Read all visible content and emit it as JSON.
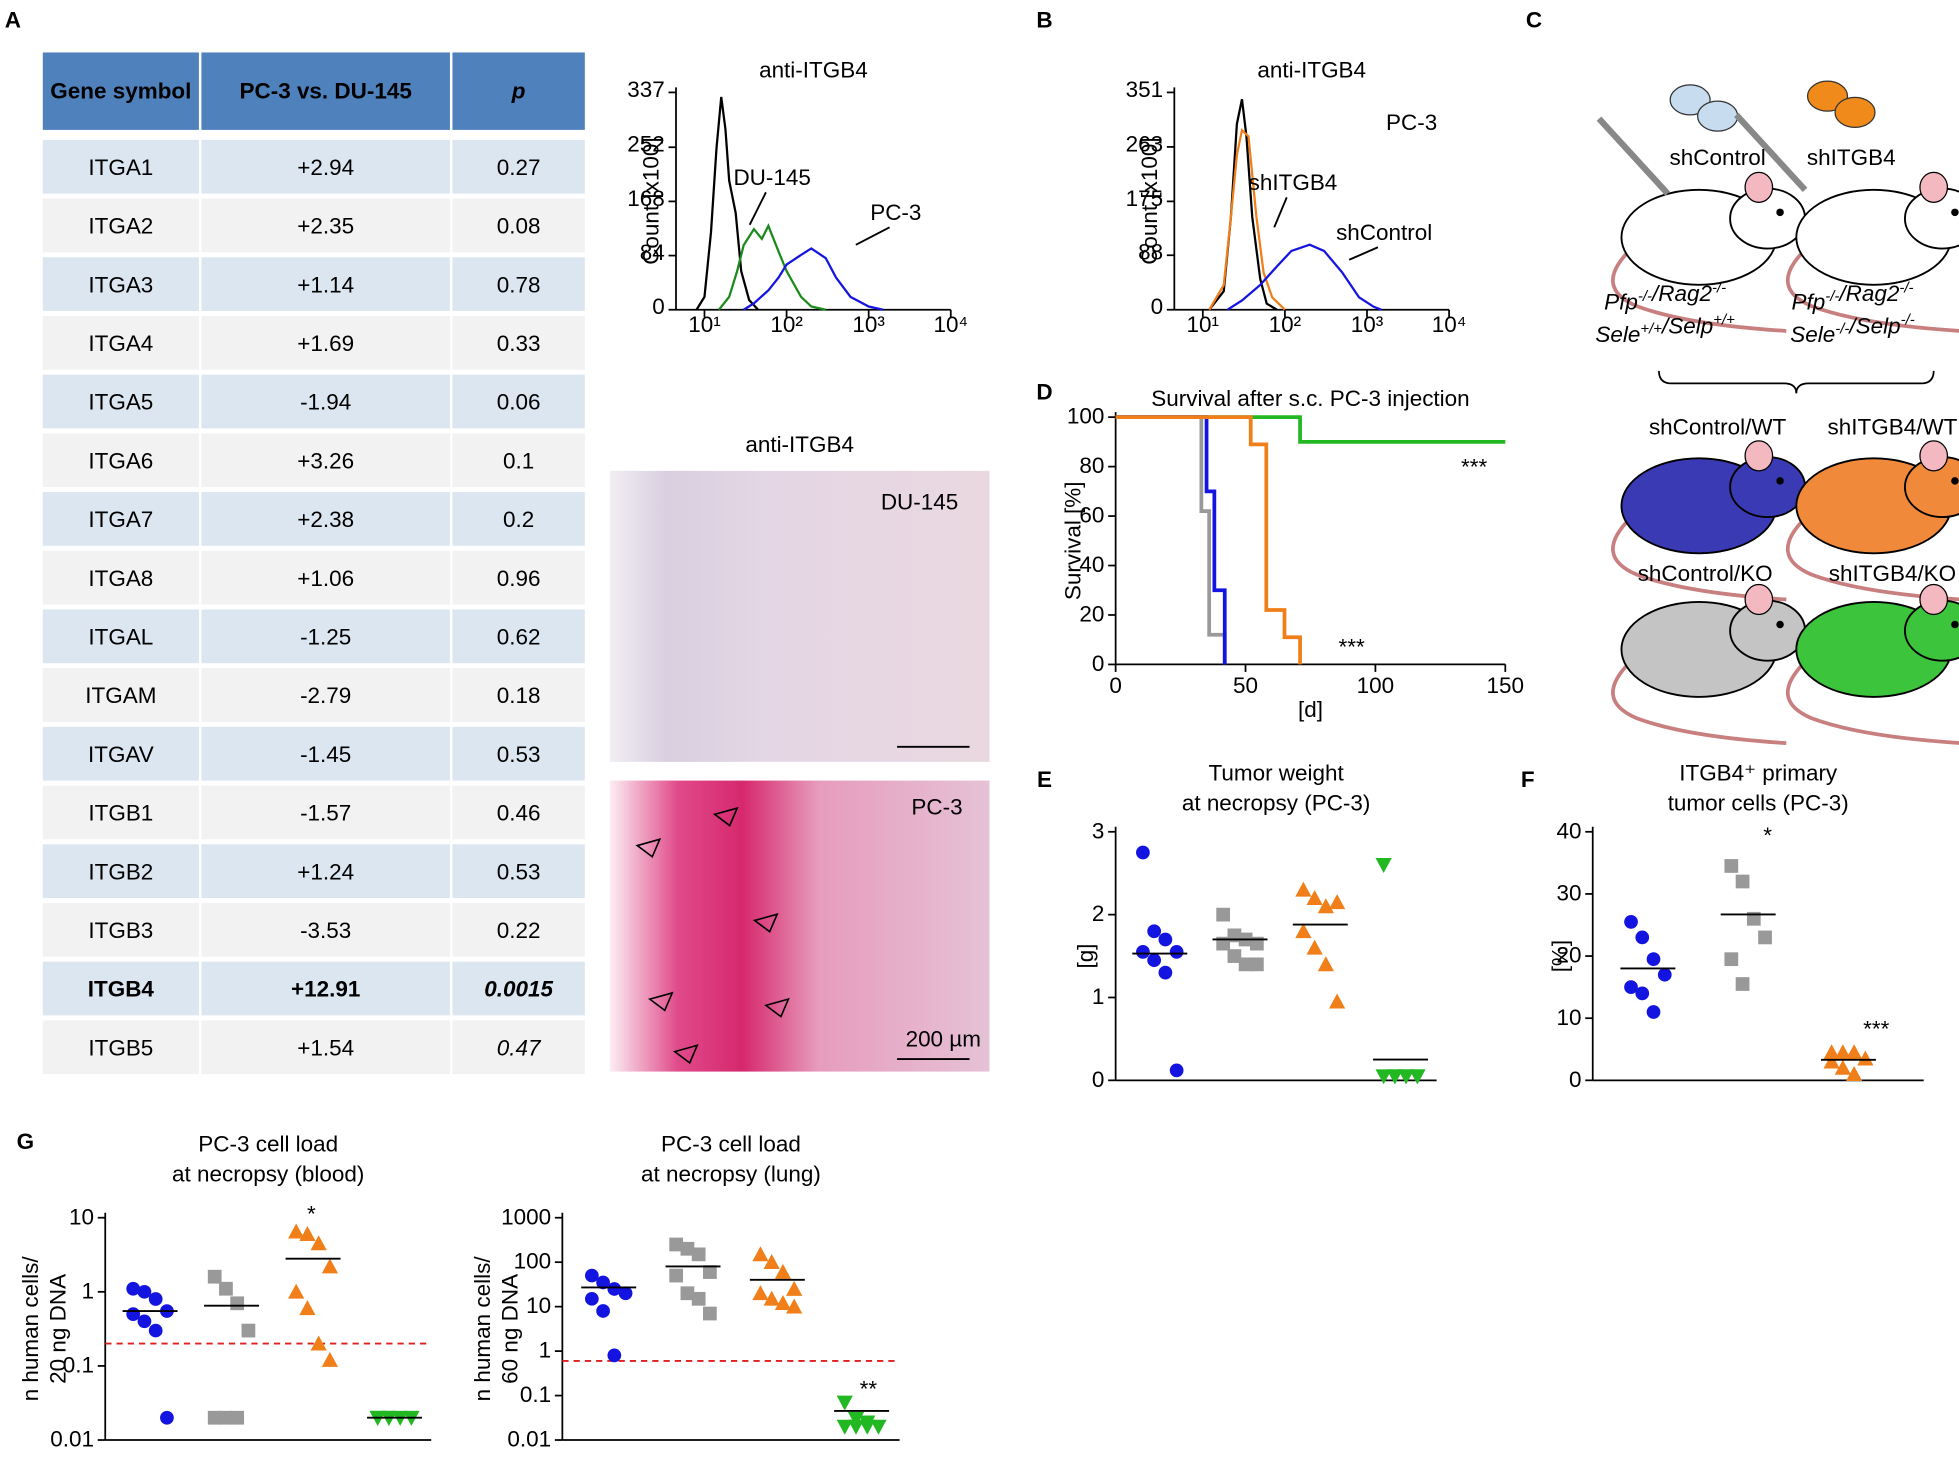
{
  "panel_labels": [
    "A",
    "B",
    "C",
    "D",
    "E",
    "F",
    "G"
  ],
  "table": {
    "header": [
      "Gene symbol",
      "PC-3 vs. DU-145",
      "p"
    ],
    "highlight_row": 14,
    "rows": [
      [
        "ITGA1",
        "+2.94",
        "0.27"
      ],
      [
        "ITGA2",
        "+2.35",
        "0.08"
      ],
      [
        "ITGA3",
        "+1.14",
        "0.78"
      ],
      [
        "ITGA4",
        "+1.69",
        "0.33"
      ],
      [
        "ITGA5",
        "-1.94",
        "0.06"
      ],
      [
        "ITGA6",
        "+3.26",
        "0.1"
      ],
      [
        "ITGA7",
        "+2.38",
        "0.2"
      ],
      [
        "ITGA8",
        "+1.06",
        "0.96"
      ],
      [
        "ITGAL",
        "-1.25",
        "0.62"
      ],
      [
        "ITGAM",
        "-2.79",
        "0.18"
      ],
      [
        "ITGAV",
        "-1.45",
        "0.53"
      ],
      [
        "ITGB1",
        "-1.57",
        "0.46"
      ],
      [
        "ITGB2",
        "+1.24",
        "0.53"
      ],
      [
        "ITGB3",
        "-3.53",
        "0.22"
      ],
      [
        "ITGB4",
        "+12.91",
        "0.0015"
      ],
      [
        "ITGB5",
        "+1.54",
        "0.47"
      ]
    ]
  },
  "ihc": {
    "title": "anti-ITGB4",
    "labels": [
      "DU-145",
      "PC-3"
    ],
    "scale_bar": "200 µm"
  },
  "diagram": {
    "injections": [
      "shControl",
      "shITGB4"
    ],
    "genotypes": [
      [
        [
          [
            "Pfp",
            "-/-"
          ],
          [
            "/Rag2",
            "-/-"
          ]
        ],
        [
          [
            "Sele",
            "+/+"
          ],
          [
            "/Selp",
            "+/+"
          ]
        ]
      ],
      [
        [
          [
            "Pfp",
            "-/-"
          ],
          [
            "/Rag2",
            "-/-"
          ]
        ],
        [
          [
            "Sele",
            "-/-"
          ],
          [
            "/Selp",
            "-/-"
          ]
        ]
      ]
    ],
    "groups": [
      "shControl/WT",
      "shITGB4/WT",
      "shControl/KO",
      "shITGB4/KO"
    ]
  },
  "chart_data": [
    {
      "type": "line",
      "title": "anti-ITGB4",
      "ylabel": "Count [x100]",
      "xscale": "log",
      "xlim": [
        4.5,
        10000
      ],
      "ylim": [
        0,
        337
      ],
      "yticks": [
        0,
        84,
        168,
        252,
        337
      ],
      "xticks": [
        {
          "value": 10,
          "label": "10¹"
        },
        {
          "value": 100,
          "label": "10²"
        },
        {
          "value": 1000,
          "label": "10³"
        },
        {
          "value": 10000,
          "label": "10⁴"
        }
      ],
      "series": [
        {
          "color": "#000000",
          "x": [
            8,
            10,
            12,
            14,
            16,
            18,
            20,
            24,
            28,
            35,
            45
          ],
          "values": [
            0,
            20,
            120,
            250,
            330,
            280,
            200,
            150,
            60,
            15,
            0
          ]
        },
        {
          "name": "DU-145",
          "color": "#1a8a1a",
          "x": [
            15,
            20,
            25,
            30,
            40,
            50,
            60,
            80,
            100,
            150,
            200,
            300
          ],
          "values": [
            0,
            20,
            60,
            100,
            125,
            110,
            130,
            90,
            60,
            20,
            5,
            0
          ]
        },
        {
          "name": "PC-3",
          "color": "#1414e0",
          "x": [
            30,
            40,
            60,
            80,
            100,
            150,
            200,
            300,
            400,
            600,
            1000,
            1500
          ],
          "values": [
            0,
            10,
            30,
            50,
            70,
            85,
            95,
            80,
            50,
            20,
            5,
            0
          ]
        }
      ]
    },
    {
      "type": "line",
      "title": "anti-ITGB4",
      "subtitle": "PC-3",
      "ylabel": "Count [x100]",
      "xscale": "log",
      "xlim": [
        4.5,
        10000
      ],
      "ylim": [
        0,
        351
      ],
      "yticks": [
        0,
        88,
        175,
        263,
        351
      ],
      "xticks": [
        {
          "value": 10,
          "label": "10¹"
        },
        {
          "value": 100,
          "label": "10²"
        },
        {
          "value": 1000,
          "label": "10³"
        },
        {
          "value": 10000,
          "label": "10⁴"
        }
      ],
      "series": [
        {
          "color": "#000000",
          "x": [
            12,
            18,
            22,
            26,
            30,
            34,
            40,
            50,
            60,
            80
          ],
          "values": [
            0,
            30,
            150,
            300,
            340,
            280,
            150,
            50,
            10,
            0
          ]
        },
        {
          "name": "shITGB4",
          "color": "#f07f1a",
          "x": [
            12,
            18,
            22,
            26,
            30,
            36,
            45,
            55,
            70,
            100
          ],
          "values": [
            0,
            40,
            150,
            250,
            290,
            280,
            150,
            60,
            20,
            0
          ]
        },
        {
          "name": "shControl",
          "color": "#1414e0",
          "x": [
            20,
            30,
            50,
            80,
            120,
            200,
            300,
            500,
            800,
            1200,
            1500
          ],
          "values": [
            0,
            15,
            40,
            70,
            95,
            105,
            95,
            60,
            20,
            5,
            0
          ]
        }
      ]
    },
    {
      "type": "line",
      "step": true,
      "title": "Survival after s.c. PC-3 injection",
      "xlabel": "[d]",
      "ylabel": "Survival [%]",
      "xlim": [
        0,
        150
      ],
      "ylim": [
        0,
        100
      ],
      "xticks": [
        0,
        50,
        100,
        150
      ],
      "yticks": [
        0,
        20,
        40,
        60,
        80,
        100
      ],
      "annotations": [
        "***",
        "***"
      ],
      "series": [
        {
          "color": "#22b822",
          "x": [
            0,
            71,
            150
          ],
          "values": [
            100,
            90,
            90
          ]
        },
        {
          "color": "#999999",
          "x": [
            0,
            33,
            36,
            42
          ],
          "values": [
            100,
            62,
            12,
            0
          ]
        },
        {
          "color": "#1414e0",
          "x": [
            0,
            35,
            38,
            42
          ],
          "values": [
            100,
            70,
            30,
            0
          ]
        },
        {
          "color": "#f07f1a",
          "x": [
            0,
            52,
            58,
            65,
            71
          ],
          "values": [
            100,
            89,
            22,
            11,
            0
          ]
        }
      ]
    },
    {
      "type": "scatter",
      "title": [
        "Tumor weight",
        "at necropsy (PC-3)"
      ],
      "ylabel": [
        "[g]"
      ],
      "ylim": [
        0,
        3
      ],
      "yticks": [
        0,
        1,
        2,
        3
      ],
      "series": [
        {
          "color": "#1414e0",
          "marker": "circle",
          "values": [
            2.75,
            1.8,
            1.7,
            1.55,
            1.55,
            1.45,
            1.3,
            0.12
          ],
          "mean": 1.53
        },
        {
          "color": "#999999",
          "marker": "square",
          "values": [
            2.0,
            1.75,
            1.7,
            1.65,
            1.65,
            1.5,
            1.4,
            1.4
          ],
          "mean": 1.7
        },
        {
          "color": "#f07f1a",
          "marker": "triangle",
          "values": [
            2.3,
            2.2,
            2.1,
            2.15,
            1.8,
            1.6,
            1.4,
            0.95
          ],
          "mean": 1.88
        },
        {
          "color": "#22b822",
          "marker": "triangle-down",
          "values": [
            2.6,
            0.05,
            0.05,
            0.05,
            0.05,
            0.05,
            0.05,
            0.05
          ],
          "mean": 0.25
        }
      ]
    },
    {
      "type": "scatter",
      "title": [
        "ITGB4⁺ primary",
        "tumor cells (PC-3)"
      ],
      "ylabel": [
        "[%]"
      ],
      "ylim": [
        0,
        40
      ],
      "yticks": [
        0,
        10,
        20,
        30,
        40
      ],
      "annotations": [
        "*",
        "***"
      ],
      "series": [
        {
          "color": "#1414e0",
          "marker": "circle",
          "values": [
            25.5,
            23,
            19.5,
            17,
            15,
            14,
            11
          ],
          "mean": 18
        },
        {
          "color": "#999999",
          "marker": "square",
          "values": [
            34.5,
            32,
            26,
            23,
            19.5,
            15.5
          ],
          "mean": 26.7
        },
        {
          "color": "#f07f1a",
          "marker": "triangle",
          "values": [
            4.5,
            4.5,
            4.5,
            3.5,
            3,
            2,
            1
          ],
          "mean": 3.3
        }
      ]
    },
    {
      "type": "scatter",
      "yscale": "log",
      "title": [
        "PC-3 cell load",
        "at necropsy (blood)"
      ],
      "ylabel": [
        "n human cells/",
        "20 ng DNA"
      ],
      "ylim": [
        0.01,
        10
      ],
      "yticks": [
        0.01,
        0.1,
        1,
        10
      ],
      "threshold": 0.2,
      "annotations": [
        "*"
      ],
      "series": [
        {
          "color": "#1414e0",
          "marker": "circle",
          "values": [
            1.1,
            1.0,
            0.8,
            0.55,
            0.5,
            0.4,
            0.3,
            0.02
          ],
          "mean": 0.55
        },
        {
          "color": "#999999",
          "marker": "square",
          "values": [
            1.6,
            1.1,
            0.7,
            0.3,
            0.02,
            0.02,
            0.02
          ],
          "mean": 0.65
        },
        {
          "color": "#f07f1a",
          "marker": "triangle",
          "values": [
            6.5,
            6.0,
            4.5,
            2.2,
            1.0,
            0.6,
            0.2,
            0.12
          ],
          "mean": 2.8
        },
        {
          "color": "#22b822",
          "marker": "triangle-down",
          "values": [
            0.02,
            0.02,
            0.02,
            0.02,
            0.02,
            0.02
          ],
          "mean": 0.02
        }
      ]
    },
    {
      "type": "scatter",
      "yscale": "log",
      "title": [
        "PC-3 cell load",
        "at necropsy (lung)"
      ],
      "ylabel": [
        "n human cells/",
        "60 ng DNA"
      ],
      "ylim": [
        0.01,
        1000
      ],
      "yticks": [
        0.01,
        0.1,
        1,
        10,
        100,
        1000
      ],
      "threshold": 0.6,
      "annotations": [
        "**"
      ],
      "series": [
        {
          "color": "#1414e0",
          "marker": "circle",
          "values": [
            50,
            35,
            25,
            20,
            15,
            8,
            0.8
          ],
          "mean": 27
        },
        {
          "color": "#999999",
          "marker": "square",
          "values": [
            250,
            200,
            150,
            60,
            50,
            20,
            15,
            7
          ],
          "mean": 80
        },
        {
          "color": "#f07f1a",
          "marker": "triangle",
          "values": [
            150,
            100,
            60,
            25,
            20,
            15,
            12,
            10
          ],
          "mean": 40
        },
        {
          "color": "#22b822",
          "marker": "triangle-down",
          "values": [
            0.07,
            0.03,
            0.025,
            0.02,
            0.02,
            0.02,
            0.02
          ],
          "mean": 0.045
        }
      ]
    }
  ]
}
